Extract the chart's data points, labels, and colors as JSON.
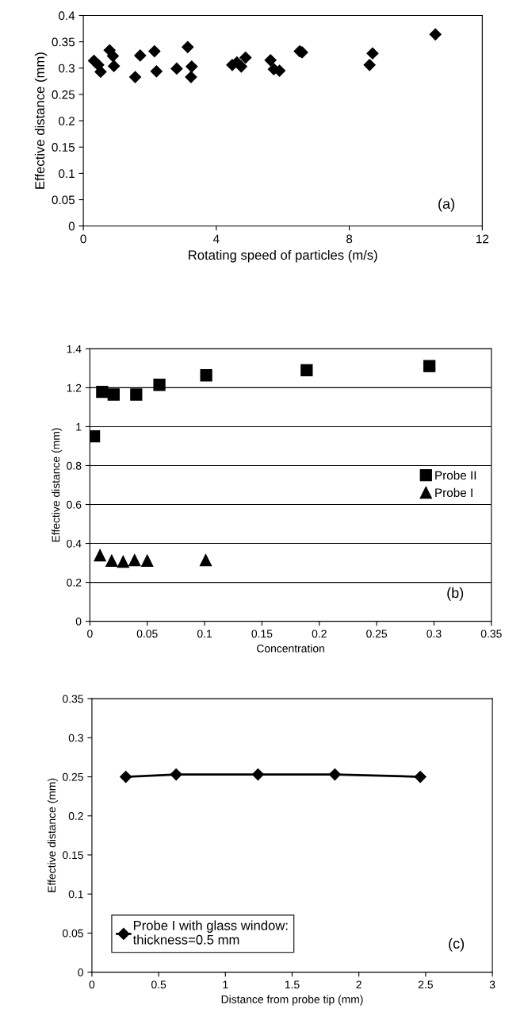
{
  "chart_data": [
    {
      "type": "scatter",
      "xlabel": "Rotating speed of particles (m/s)",
      "ylabel": "Effective distance (mm)",
      "annotations": [
        "(a)"
      ],
      "marker": "diamond",
      "grid": false,
      "legend": false,
      "xlim": [
        0,
        12
      ],
      "xticks": [
        0,
        4,
        8,
        12
      ],
      "ylim": [
        0,
        0.4
      ],
      "yticks": [
        0,
        0.05,
        0.1,
        0.15,
        0.2,
        0.25,
        0.3,
        0.35,
        0.4
      ],
      "series": [
        {
          "color": "#000000",
          "x": [
            0.32,
            0.45,
            0.52,
            0.79,
            0.89,
            0.92,
            1.56,
            1.71,
            2.14,
            2.2,
            2.81,
            3.14,
            3.26,
            3.24,
            4.48,
            4.62,
            4.75,
            4.88,
            5.63,
            5.73,
            5.9,
            6.51,
            6.58,
            8.61,
            8.7,
            10.59
          ],
          "values": [
            0.314,
            0.306,
            0.293,
            0.334,
            0.323,
            0.304,
            0.283,
            0.324,
            0.332,
            0.294,
            0.299,
            0.34,
            0.303,
            0.283,
            0.306,
            0.311,
            0.303,
            0.32,
            0.315,
            0.298,
            0.295,
            0.332,
            0.33,
            0.306,
            0.328,
            0.364
          ]
        }
      ]
    },
    {
      "type": "scatter",
      "xlabel": "Concentration",
      "ylabel": "Effective distance (mm)",
      "annotations": [
        "(b)"
      ],
      "grid": "y",
      "legend": "center right",
      "xlim": [
        0,
        0.35
      ],
      "xticks": [
        0,
        0.05,
        0.1,
        0.15,
        0.2,
        0.25,
        0.3,
        0.35
      ],
      "ylim": [
        0,
        1.4
      ],
      "yticks": [
        0,
        0.2,
        0.4,
        0.6,
        0.8,
        1,
        1.2,
        1.4
      ],
      "series": [
        {
          "name": "Probe II",
          "marker": "square",
          "color": "#000000",
          "x": [
            0.0036,
            0.0107,
            0.0207,
            0.0404,
            0.0606,
            0.1014,
            0.189,
            0.296
          ],
          "values": [
            0.95,
            1.179,
            1.165,
            1.165,
            1.215,
            1.264,
            1.29,
            1.311
          ]
        },
        {
          "name": "Probe I",
          "marker": "triangle",
          "color": "#000000",
          "x": [
            0.0088,
            0.019,
            0.029,
            0.039,
            0.05,
            0.101
          ],
          "values": [
            0.339,
            0.311,
            0.306,
            0.314,
            0.311,
            0.314
          ]
        }
      ]
    },
    {
      "type": "line",
      "xlabel": "Distance from probe tip (mm)",
      "ylabel": "Effective distance (mm)",
      "annotations": [
        "(c)"
      ],
      "marker": "diamond",
      "line_style": "solid",
      "grid": false,
      "legend": "bottom left",
      "xlim": [
        0,
        3
      ],
      "xticks": [
        0,
        0.5,
        1,
        1.5,
        2,
        2.5,
        3
      ],
      "ylim": [
        0,
        0.35
      ],
      "yticks": [
        0,
        0.05,
        0.1,
        0.15,
        0.2,
        0.25,
        0.3,
        0.35
      ],
      "series": [
        {
          "name": "Probe I with glass window:\nthickness=0.5 mm",
          "color": "#000000",
          "x": [
            0.254,
            0.631,
            1.244,
            1.82,
            2.46
          ],
          "values": [
            0.25,
            0.253,
            0.253,
            0.253,
            0.25
          ]
        }
      ]
    }
  ]
}
